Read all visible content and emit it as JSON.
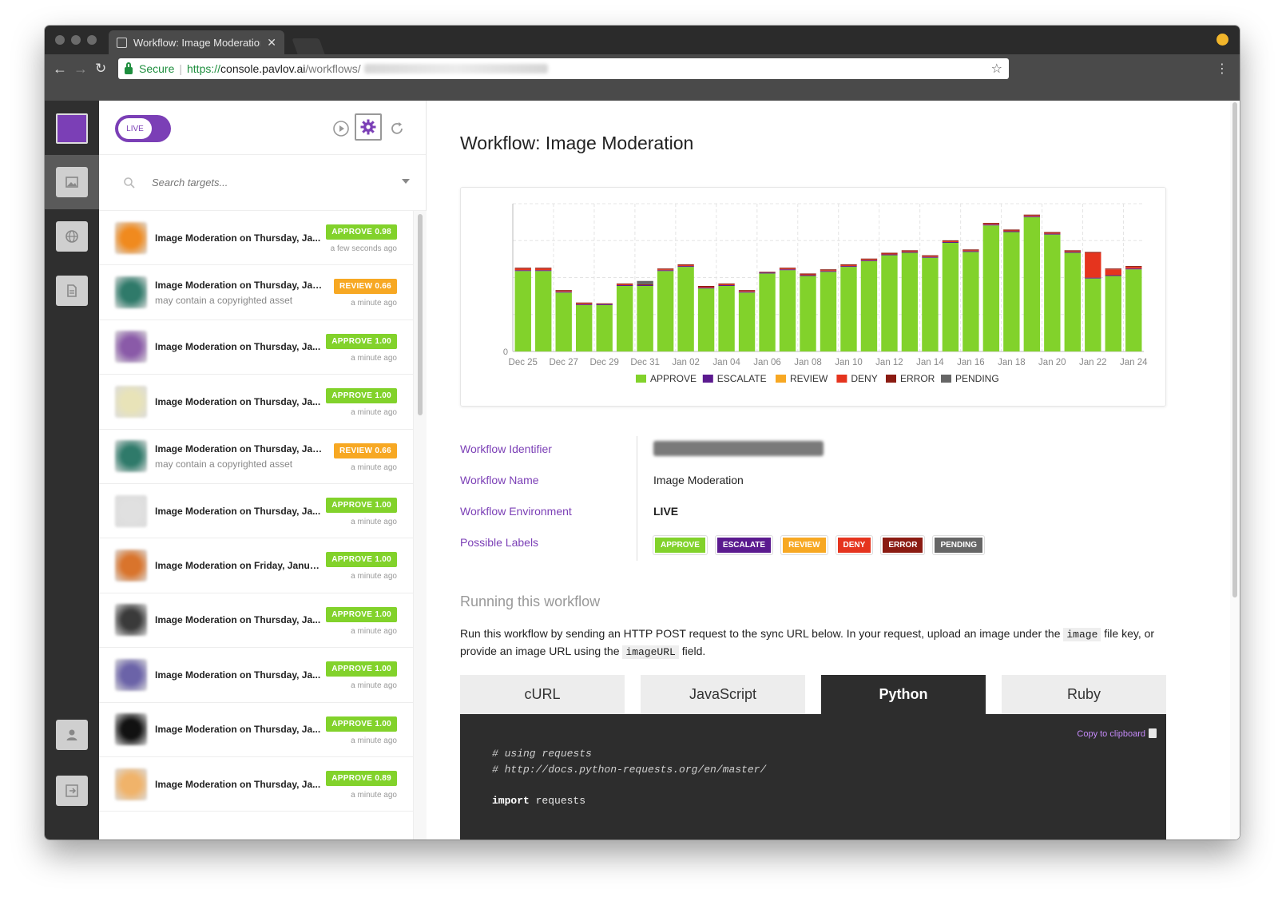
{
  "browser": {
    "tab_title": "Workflow: Image Moderation |",
    "secure_label": "Secure",
    "url_scheme": "https://",
    "url_host": "console.pavlov.ai",
    "url_path": "/workflows/"
  },
  "panel": {
    "toggle_label": "LIVE",
    "search_placeholder": "Search targets...",
    "items": [
      {
        "title": "Image Moderation on Thursday, Ja...",
        "sub": "",
        "badge": "APPROVE 0.98",
        "badge_type": "approve",
        "time": "a few seconds ago",
        "thumb": "#f08a1e"
      },
      {
        "title": "Image Moderation on Thursday, Jan...",
        "sub": "may contain a copyrighted asset",
        "badge": "REVIEW 0.66",
        "badge_type": "review",
        "time": "a minute ago",
        "thumb": "#2f7a6a"
      },
      {
        "title": "Image Moderation on Thursday, Ja...",
        "sub": "",
        "badge": "APPROVE 1.00",
        "badge_type": "approve",
        "time": "a minute ago",
        "thumb": "#8a5aa8"
      },
      {
        "title": "Image Moderation on Thursday, Ja...",
        "sub": "",
        "badge": "APPROVE 1.00",
        "badge_type": "approve",
        "time": "a minute ago",
        "thumb": "#e8e3b8"
      },
      {
        "title": "Image Moderation on Thursday, Jan...",
        "sub": "may contain a copyrighted asset",
        "badge": "REVIEW 0.66",
        "badge_type": "review",
        "time": "a minute ago",
        "thumb": "#2f7a6a"
      },
      {
        "title": "Image Moderation on Thursday, Ja...",
        "sub": "",
        "badge": "APPROVE 1.00",
        "badge_type": "approve",
        "time": "a minute ago",
        "thumb": "#e0e0e0"
      },
      {
        "title": "Image Moderation on Friday, Janua...",
        "sub": "",
        "badge": "APPROVE 1.00",
        "badge_type": "approve",
        "time": "a minute ago",
        "thumb": "#d9742c"
      },
      {
        "title": "Image Moderation on Thursday, Ja...",
        "sub": "",
        "badge": "APPROVE 1.00",
        "badge_type": "approve",
        "time": "a minute ago",
        "thumb": "#3a3a3a"
      },
      {
        "title": "Image Moderation on Thursday, Ja...",
        "sub": "",
        "badge": "APPROVE 1.00",
        "badge_type": "approve",
        "time": "a minute ago",
        "thumb": "#6b63a8"
      },
      {
        "title": "Image Moderation on Thursday, Ja...",
        "sub": "",
        "badge": "APPROVE 1.00",
        "badge_type": "approve",
        "time": "a minute ago",
        "thumb": "#111111"
      },
      {
        "title": "Image Moderation on Thursday, Ja...",
        "sub": "",
        "badge": "APPROVE 0.89",
        "badge_type": "approve",
        "time": "a minute ago",
        "thumb": "#f0b36a"
      }
    ]
  },
  "main": {
    "title": "Workflow: Image Moderation",
    "props": {
      "identifier_label": "Workflow Identifier",
      "name_label": "Workflow Name",
      "name_value": "Image Moderation",
      "env_label": "Workflow Environment",
      "env_value": "LIVE",
      "labels_label": "Possible Labels",
      "labels": [
        {
          "text": "APPROVE",
          "color": "#82d22b"
        },
        {
          "text": "ESCALATE",
          "color": "#5b1a8f"
        },
        {
          "text": "REVIEW",
          "color": "#f7a823"
        },
        {
          "text": "DENY",
          "color": "#e5341e"
        },
        {
          "text": "ERROR",
          "color": "#8b1b12"
        },
        {
          "text": "PENDING",
          "color": "#666666"
        }
      ]
    },
    "run": {
      "heading": "Running this workflow",
      "text1": "Run this workflow by sending an HTTP POST request to the sync URL below. In your request, upload an image under the",
      "code1": "image",
      "text2": "file key, or provide an image URL using the",
      "code2": "imageURL",
      "text3": "field."
    },
    "tabs": [
      "cURL",
      "JavaScript",
      "Python",
      "Ruby"
    ],
    "active_tab": "Python",
    "code": {
      "copy_label": "Copy to clipboard",
      "line1": "# using requests",
      "line2": "# http://docs.python-requests.org/en/master/",
      "line3_kw": "import",
      "line3_rest": " requests"
    }
  },
  "chart_data": {
    "type": "bar",
    "stacked": true,
    "ytick_labels": [
      "0"
    ],
    "grid": true,
    "legend_position": "bottom",
    "categories": [
      "Dec 25",
      "Dec 26",
      "Dec 27",
      "Dec 28",
      "Dec 29",
      "Dec 30",
      "Dec 31",
      "Jan 01",
      "Jan 02",
      "Jan 03",
      "Jan 04",
      "Jan 05",
      "Jan 06",
      "Jan 07",
      "Jan 08",
      "Jan 09",
      "Jan 10",
      "Jan 11",
      "Jan 12",
      "Jan 13",
      "Jan 14",
      "Jan 15",
      "Jan 16",
      "Jan 17",
      "Jan 18",
      "Jan 19",
      "Jan 20",
      "Jan 21",
      "Jan 22",
      "Jan 23",
      "Jan 24"
    ],
    "series": [
      {
        "name": "APPROVE",
        "color": "#82d22b",
        "values": [
          97,
          97,
          71,
          56,
          56,
          79,
          79,
          97,
          102,
          76,
          79,
          71,
          94,
          98,
          91,
          96,
          102,
          109,
          116,
          119,
          113,
          131,
          120,
          152,
          144,
          162,
          141,
          119,
          88,
          91,
          99
        ]
      },
      {
        "name": "ESCALATE",
        "color": "#5b1a8f",
        "values": [
          1,
          1,
          1,
          1,
          1,
          1,
          1,
          1,
          1,
          1,
          1,
          1,
          1,
          1,
          1,
          1,
          1,
          1,
          1,
          1,
          1,
          1,
          1,
          1,
          1,
          1,
          1,
          1,
          1,
          1,
          1
        ]
      },
      {
        "name": "REVIEW",
        "color": "#f7a823",
        "values": [
          0,
          0,
          0,
          0,
          0,
          0,
          0,
          0,
          0,
          0,
          0,
          0,
          0,
          0,
          0,
          0,
          0,
          0,
          0,
          0,
          0,
          0,
          0,
          0,
          0,
          0,
          0,
          0,
          0,
          0,
          0
        ]
      },
      {
        "name": "DENY",
        "color": "#e5341e",
        "values": [
          2,
          2,
          1,
          1,
          0,
          1,
          0,
          1,
          1,
          1,
          1,
          1,
          0,
          1,
          1,
          1,
          1,
          1,
          1,
          1,
          1,
          1,
          1,
          1,
          1,
          1,
          1,
          1,
          30,
          7,
          2
        ]
      },
      {
        "name": "ERROR",
        "color": "#8b1b12",
        "values": [
          1,
          1,
          1,
          1,
          1,
          1,
          1,
          1,
          1,
          1,
          1,
          1,
          1,
          1,
          1,
          1,
          1,
          1,
          1,
          1,
          1,
          1,
          1,
          1,
          1,
          1,
          1,
          1,
          1,
          1,
          1
        ]
      },
      {
        "name": "PENDING",
        "color": "#666666",
        "values": [
          0,
          0,
          0,
          0,
          0,
          0,
          4,
          0,
          0,
          0,
          0,
          0,
          0,
          0,
          0,
          0,
          0,
          0,
          0,
          0,
          0,
          0,
          0,
          0,
          0,
          0,
          0,
          0,
          0,
          0,
          0
        ]
      }
    ]
  }
}
